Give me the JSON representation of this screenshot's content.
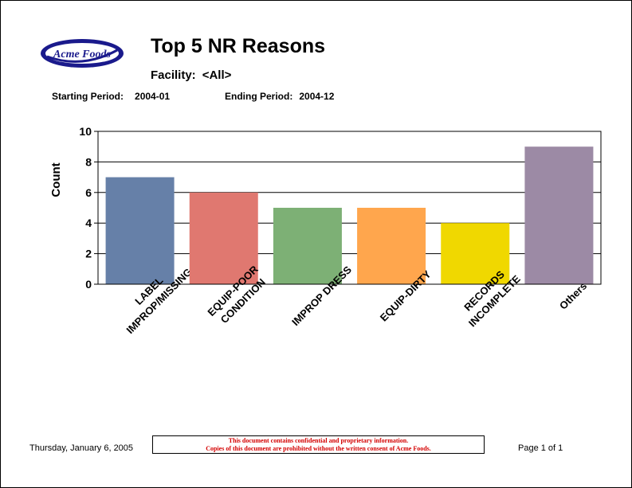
{
  "logo": {
    "text": "Acme Foods",
    "ring_color": "#1a1a8c",
    "fill_color": "#ffffff"
  },
  "report": {
    "title": "Top 5 NR Reasons",
    "facility_label": "Facility:",
    "facility_value": "<All>",
    "starting_label": "Starting Period:",
    "starting_value": "2004-01",
    "ending_label": "Ending Period:",
    "ending_value": "2004-12"
  },
  "chart_data": {
    "type": "bar",
    "title": "",
    "xlabel": "",
    "ylabel": "Count",
    "ylim": [
      0,
      10
    ],
    "yticks": [
      0,
      2,
      4,
      6,
      8,
      10
    ],
    "grid": true,
    "categories": [
      [
        "LABEL",
        "IMPROP/MISSING"
      ],
      [
        "EQUIP-POOR",
        "CONDITION"
      ],
      [
        "IMPROP DRESS"
      ],
      [
        "EQUIP-DIRTY"
      ],
      [
        "RECORDS",
        "INCOMPLETE"
      ],
      [
        "Others"
      ]
    ],
    "values": [
      7,
      6,
      5,
      5,
      4,
      9
    ],
    "colors": [
      "#6680a8",
      "#e07870",
      "#7db075",
      "#ffa64d",
      "#f0d800",
      "#9c8aa5"
    ]
  },
  "footer": {
    "date": "Thursday, January 6, 2005",
    "notice_line1": "This document contains confidential and proprietary information.",
    "notice_line2": "Copies of this document are prohibited without the written consent of Acme Foods.",
    "page": "Page 1 of 1"
  }
}
